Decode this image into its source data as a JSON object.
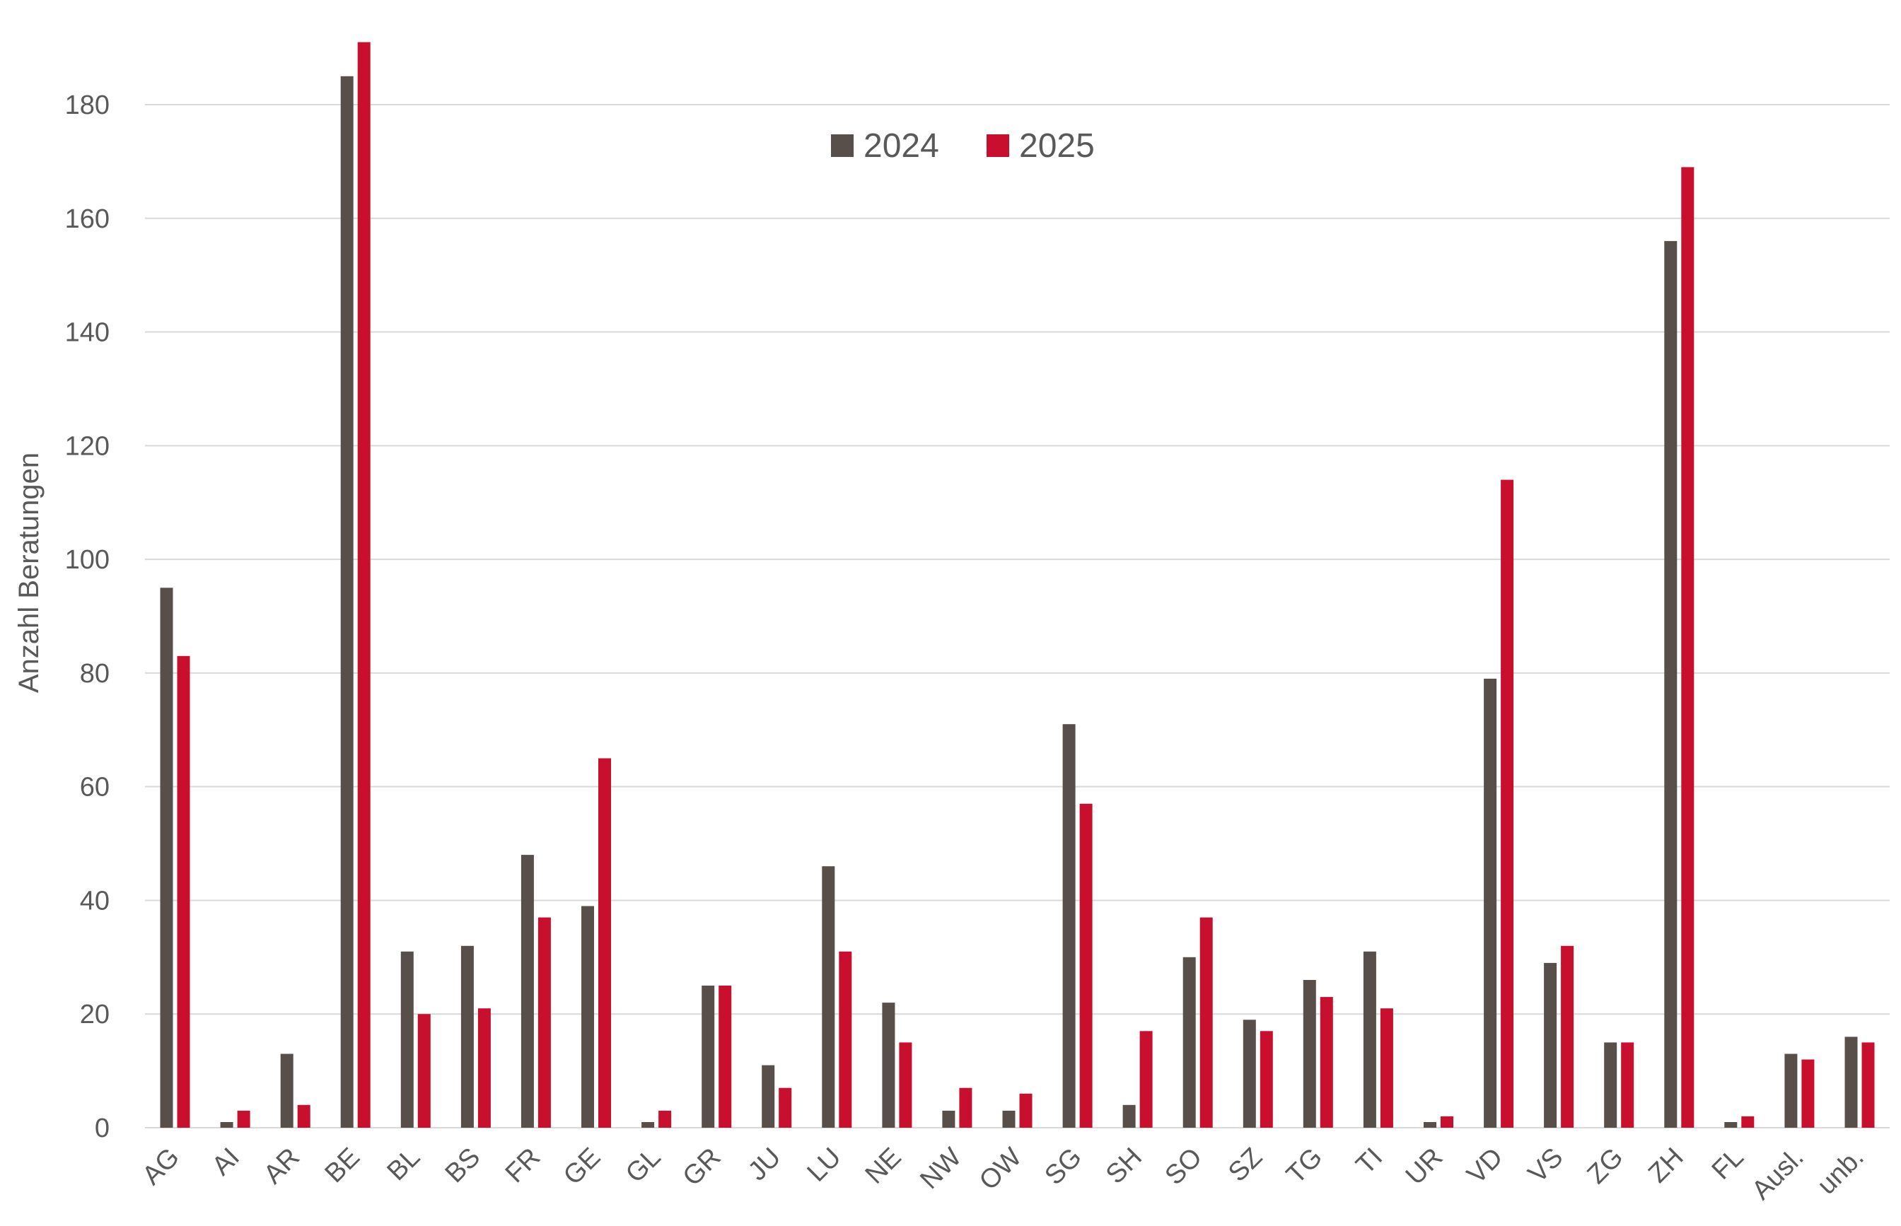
{
  "chart_data": {
    "type": "bar",
    "title": "",
    "xlabel": "",
    "ylabel": "Anzahl Beratungen",
    "ylim": [
      0,
      190
    ],
    "yticks": [
      0,
      20,
      40,
      60,
      80,
      100,
      120,
      140,
      160,
      180
    ],
    "grid": true,
    "legend_position": "top-center",
    "categories": [
      "AG",
      "AI",
      "AR",
      "BE",
      "BL",
      "BS",
      "FR",
      "GE",
      "GL",
      "GR",
      "JU",
      "LU",
      "NE",
      "NW",
      "OW",
      "SG",
      "SH",
      "SO",
      "SZ",
      "TG",
      "TI",
      "UR",
      "VD",
      "VS",
      "ZG",
      "ZH",
      "FL",
      "Ausl.",
      "unb."
    ],
    "series": [
      {
        "name": "2024",
        "color": "#594f4a",
        "values": [
          95,
          1,
          13,
          185,
          31,
          32,
          48,
          39,
          1,
          25,
          11,
          46,
          22,
          3,
          3,
          71,
          4,
          30,
          19,
          26,
          31,
          1,
          79,
          29,
          15,
          156,
          1,
          13,
          16
        ]
      },
      {
        "name": "2025",
        "color": "#c8102e",
        "values": [
          83,
          3,
          4,
          191,
          20,
          21,
          37,
          65,
          3,
          25,
          7,
          31,
          15,
          7,
          6,
          57,
          17,
          37,
          17,
          23,
          21,
          2,
          114,
          32,
          15,
          169,
          2,
          12,
          15
        ]
      }
    ]
  }
}
